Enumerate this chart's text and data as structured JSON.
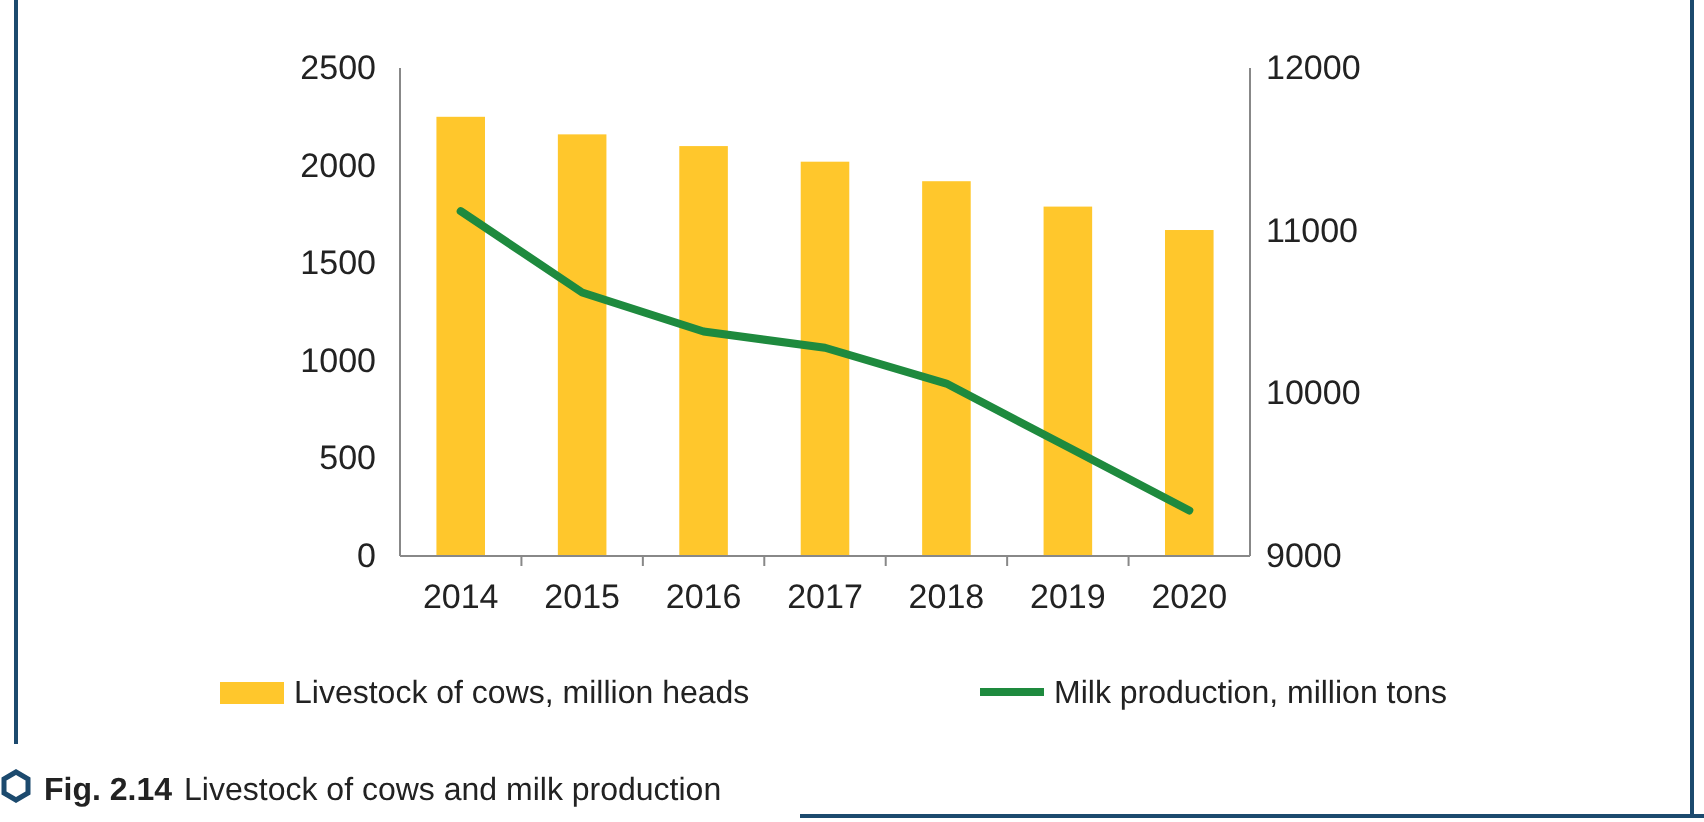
{
  "chart_data": {
    "type": "bar",
    "title": "Fig. 2.14 Livestock of cows and milk production",
    "categories": [
      "2014",
      "2015",
      "2016",
      "2017",
      "2018",
      "2019",
      "2020"
    ],
    "series": [
      {
        "name": "Livestock of cows, million heads",
        "color": "#ffc72c",
        "values": [
          2250,
          2160,
          2100,
          2020,
          1920,
          1790,
          1670
        ]
      },
      {
        "name": "Milk production, million tons",
        "type": "line",
        "axis": "y2",
        "color": "#1e8a3e",
        "values": [
          11120,
          10620,
          10380,
          10280,
          10060,
          9670,
          9280
        ]
      }
    ],
    "ylim": [
      0,
      2500
    ],
    "yticks": [
      0,
      500,
      1000,
      1500,
      2000,
      2500
    ],
    "y2lim": [
      9000,
      12000
    ],
    "y2ticks": [
      9000,
      10000,
      11000,
      12000
    ],
    "legend": "bottom",
    "grid": false
  }
}
